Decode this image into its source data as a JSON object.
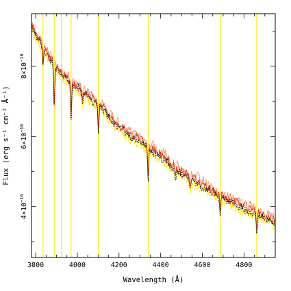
{
  "chart_data": {
    "type": "line",
    "xlabel": "Wavelength (Å)",
    "ylabel": "Flux (erg s⁻¹ cm⁻² Å⁻¹)",
    "xlim": [
      3780,
      4950
    ],
    "ylim": [
      2.55e-16,
      9.5e-16
    ],
    "x_ticks": [
      3800,
      4000,
      4200,
      4400,
      4600,
      4800
    ],
    "x_tick_labels": [
      "3800",
      "4000",
      "4200",
      "4400",
      "4600",
      "4800"
    ],
    "y_ticks": [
      4e-16,
      6e-16,
      8e-16
    ],
    "y_tick_labels": [
      {
        "mantissa": "4×10",
        "exponent": "−16"
      },
      {
        "mantissa": "6×10",
        "exponent": "−16"
      },
      {
        "mantissa": "8×10",
        "exponent": "−16"
      }
    ],
    "grid": false,
    "vertical_lines": {
      "color": "#ffee00",
      "x": [
        3835,
        3889,
        3924,
        3970,
        4101,
        4340,
        4686,
        4861
      ]
    },
    "absorption_lines": [
      {
        "x": 3835,
        "depth": 5e-17
      },
      {
        "x": 3889,
        "depth": 1.2e-16
      },
      {
        "x": 3970,
        "depth": 1.1e-16
      },
      {
        "x": 4026,
        "depth": 3.5e-17
      },
      {
        "x": 4101,
        "depth": 7.5e-17
      },
      {
        "x": 4340,
        "depth": 9.5e-17
      },
      {
        "x": 4471,
        "depth": 3.5e-17
      },
      {
        "x": 4542,
        "depth": 3e-17
      },
      {
        "x": 4686,
        "depth": 5e-17
      },
      {
        "x": 4861,
        "depth": 6e-17
      }
    ],
    "continuum": [
      [
        3780,
        9.2e-16
      ],
      [
        3800,
        8.9e-16
      ],
      [
        3850,
        8.4e-16
      ],
      [
        3900,
        7.9e-16
      ],
      [
        4000,
        7.4e-16
      ],
      [
        4100,
        6.9e-16
      ],
      [
        4200,
        6.25e-16
      ],
      [
        4300,
        5.85e-16
      ],
      [
        4400,
        5.45e-16
      ],
      [
        4500,
        4.95e-16
      ],
      [
        4600,
        4.6e-16
      ],
      [
        4700,
        4.25e-16
      ],
      [
        4800,
        3.95e-16
      ],
      [
        4900,
        3.7e-16
      ],
      [
        4950,
        3.55e-16
      ]
    ],
    "series": [
      {
        "color": "#ffee00",
        "style": "solid",
        "offset": -1e-17,
        "noise": 2.2e-17,
        "width": 0.9
      },
      {
        "color": "#ff8a5a",
        "style": "solid",
        "offset": 1.2e-17,
        "noise": 2.2e-17,
        "width": 0.8
      },
      {
        "color": "#e8281a",
        "style": "solid",
        "offset": 3e-18,
        "noise": 2e-17,
        "width": 0.8
      },
      {
        "color": "#000000",
        "style": "dotted",
        "offset": -2e-18,
        "noise": 1.8e-17,
        "width": 1.1
      }
    ]
  }
}
